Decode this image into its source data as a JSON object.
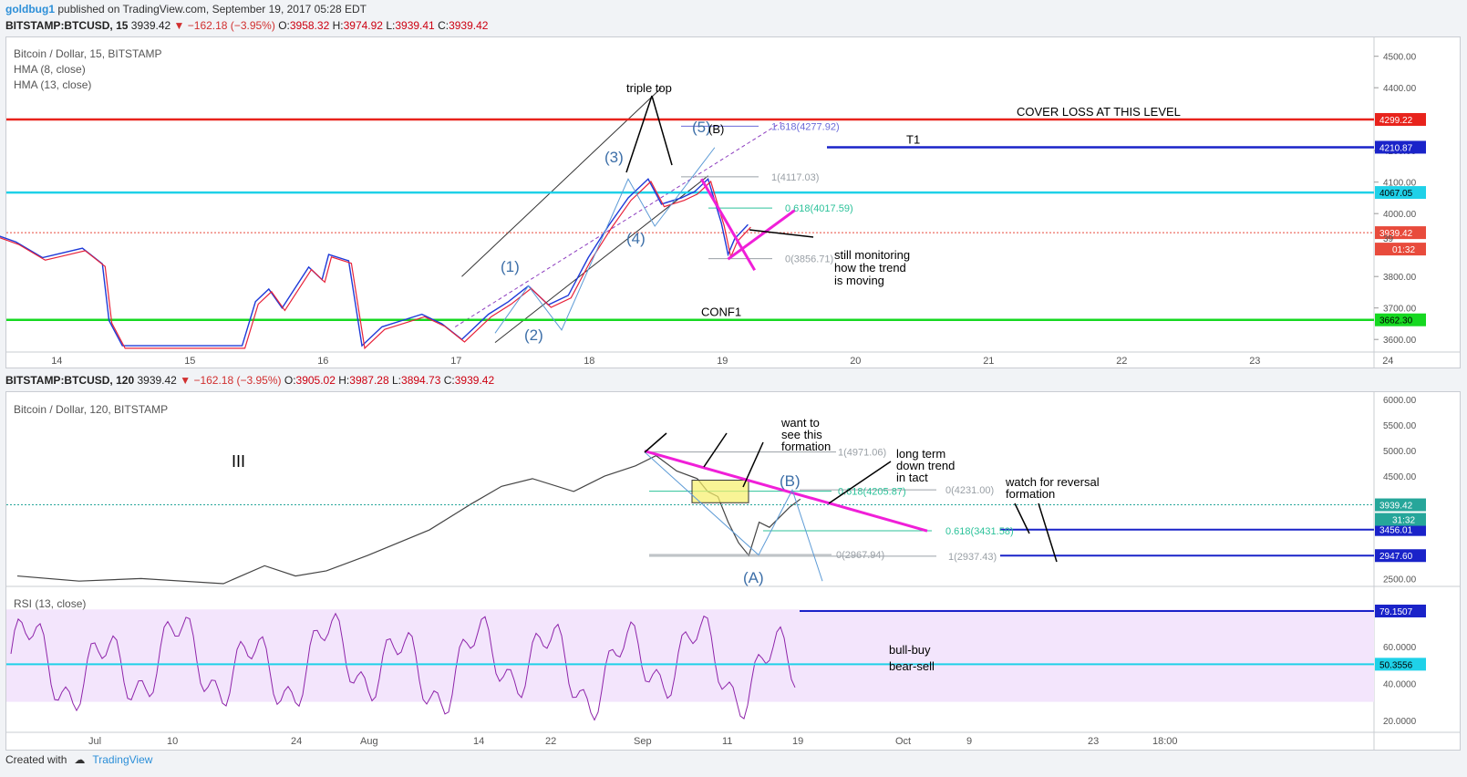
{
  "header": {
    "user": "goldbug1",
    "published": "published on TradingView.com, September 19, 2017 05:28 EDT"
  },
  "footer": {
    "created_with": "Created with",
    "brand": "TradingView"
  },
  "chart_data": [
    {
      "type": "line",
      "quote": {
        "symbol": "BITSTAMP:BTCUSD, 15",
        "last": "3939.42",
        "change": "−162.18 (−3.95%)",
        "open": "3958.32",
        "high": "3974.92",
        "low": "3939.41",
        "close": "3939.42",
        "o_label": "O:",
        "h_label": "H:",
        "l_label": "L:",
        "c_label": "C:"
      },
      "legend": [
        "Bitcoin / Dollar, 15, BITSTAMP",
        "HMA (8, close)",
        "HMA (13, close)"
      ],
      "x_ticks": [
        "14",
        "15",
        "16",
        "17",
        "18",
        "19",
        "20",
        "21",
        "22",
        "23",
        "24"
      ],
      "y_ticks": [
        "4500.00",
        "4400.00",
        "4200.00",
        "4100.00",
        "4000.00",
        "3800.00",
        "3700.00",
        "3600.00"
      ],
      "ylim": [
        3560,
        4560
      ],
      "price": {
        "x": [
          13.5,
          13.7,
          13.9,
          14.0,
          14.2,
          14.35,
          14.4,
          14.5,
          15.4,
          15.5,
          15.6,
          15.7,
          15.9,
          16.0,
          16.05,
          16.2,
          16.3,
          16.45,
          16.6,
          16.75,
          16.9,
          17.05,
          17.25,
          17.4,
          17.55,
          17.7,
          17.85,
          18.0,
          18.15,
          18.3,
          18.45,
          18.55,
          18.7,
          18.8,
          18.9,
          19.0,
          19.05,
          19.1,
          19.2
        ],
        "y": [
          3940,
          3910,
          3860,
          3870,
          3890,
          3840,
          3660,
          3580,
          3580,
          3720,
          3760,
          3700,
          3830,
          3790,
          3870,
          3850,
          3580,
          3640,
          3660,
          3680,
          3650,
          3600,
          3680,
          3720,
          3770,
          3710,
          3740,
          3860,
          3960,
          4050,
          4110,
          4030,
          4050,
          4070,
          4110,
          3970,
          3870,
          3920,
          3965
        ]
      },
      "hlines": [
        {
          "value": 4299.22,
          "label": "4299.22",
          "color": "#e8231c",
          "text": "COVER LOSS AT THIS LEVEL"
        },
        {
          "value": 4210.87,
          "label": "4210.87",
          "color": "#1a23c9",
          "text": "T1"
        },
        {
          "value": 4067.05,
          "label": "4067.05",
          "color": "#1fd1e8",
          "text": ""
        },
        {
          "value": 3939.42,
          "label": "3939.42",
          "color": "#e84b3c",
          "text": ""
        },
        {
          "value": 3662.3,
          "label": "3662.30",
          "color": "#15d820",
          "text": "CONF1"
        }
      ],
      "timer": "01:32",
      "fib": [
        {
          "value": 4277.92,
          "label": "1.618(4277.92)",
          "color": "#6b6bd8"
        },
        {
          "value": 4117.03,
          "label": "1(4117.03)",
          "color": "#9aa0a6"
        },
        {
          "value": 4017.59,
          "label": "0.618(4017.59)",
          "color": "#2cc29a"
        },
        {
          "value": 3856.71,
          "label": "0(3856.71)",
          "color": "#9aa0a6"
        }
      ],
      "annotations": [
        "triple top",
        "(1)",
        "(2)",
        "(3)",
        "(4)",
        "(5)",
        "(B)",
        "still monitoring",
        "how the trend",
        "is moving",
        "39"
      ],
      "colors": {
        "up": "#26a69a",
        "down": "#ef5350",
        "hma1": "#1e3ad8",
        "hma2": "#e8233a",
        "pink": "#f01fd8"
      }
    },
    {
      "type": "line",
      "quote": {
        "symbol": "BITSTAMP:BTCUSD, 120",
        "last": "3939.42",
        "change": "−162.18 (−3.95%)",
        "open": "3905.02",
        "high": "3987.28",
        "low": "3894.73",
        "close": "3939.42",
        "o_label": "O:",
        "h_label": "H:",
        "l_label": "L:",
        "c_label": "C:"
      },
      "legend": [
        "Bitcoin / Dollar, 120, BITSTAMP"
      ],
      "y_ticks": [
        "6000.00",
        "5500.00",
        "5000.00",
        "4500.00",
        "3500.00",
        "2500.00"
      ],
      "ylim": [
        2400,
        6050
      ],
      "price": {
        "x": [
          0,
          6,
          12,
          20,
          24,
          27,
          30,
          34,
          40,
          44,
          47,
          50,
          54,
          57,
          60,
          62,
          64,
          66,
          67,
          68,
          69,
          70,
          71,
          72,
          73,
          75,
          76
        ],
        "y": [
          2550,
          2450,
          2500,
          2400,
          2750,
          2550,
          2650,
          2950,
          3450,
          3950,
          4300,
          4450,
          4200,
          4500,
          4700,
          4900,
          4600,
          4450,
          4200,
          4100,
          3600,
          3200,
          2950,
          3600,
          3500,
          3900,
          4050
        ]
      },
      "hlines": [
        {
          "value": 3456.01,
          "label": "3456.01",
          "color": "#1a23c9"
        },
        {
          "value": 2947.6,
          "label": "2947.60",
          "color": "#1a23c9"
        },
        {
          "value": 3939.42,
          "label": "3939.42",
          "color": "#26a69a"
        }
      ],
      "timer": "31:32",
      "fib": [
        {
          "value": 4971.06,
          "label": "1(4971.06)",
          "color": "#9aa0a6"
        },
        {
          "value": 4231.0,
          "label": "0(4231.00)",
          "color": "#9aa0a6"
        },
        {
          "value": 4205.87,
          "label": "0.618(4205.87)",
          "color": "#2cc29a"
        },
        {
          "value": 3431.58,
          "label": "0.618(3431.58)",
          "color": "#2cc29a"
        },
        {
          "value": 2967.94,
          "label": "0(2967.94)",
          "color": "#9aa0a6"
        },
        {
          "value": 2937.43,
          "label": "1(2937.43)",
          "color": "#9aa0a6"
        }
      ],
      "annotations": [
        "III",
        "want to",
        "see this",
        "formation",
        "long term",
        "down trend",
        "in tact",
        "watch for reversal",
        "formation",
        "(A)",
        "(B)"
      ]
    },
    {
      "type": "line",
      "legend": [
        "RSI (13, close)"
      ],
      "y_ticks": [
        "60.0000",
        "40.0000",
        "20.0000"
      ],
      "ylim": [
        15,
        90
      ],
      "x_ticks": [
        "Jul",
        "10",
        "24",
        "Aug",
        "14",
        "22",
        "Sep",
        "11",
        "19",
        "Oct",
        "9",
        "23",
        "18:00"
      ],
      "hlines": [
        {
          "value": 79.1507,
          "label": "79.1507",
          "color": "#1a23c9"
        },
        {
          "value": 50.3556,
          "label": "50.3556",
          "color": "#1fd1e8",
          "text": "bull-buy"
        }
      ],
      "annotations": [
        "bull-buy",
        "bear-sell"
      ],
      "band": [
        30,
        80
      ],
      "colors": {
        "rsi": "#8e24aa",
        "band": "#f3e5fc"
      }
    }
  ]
}
